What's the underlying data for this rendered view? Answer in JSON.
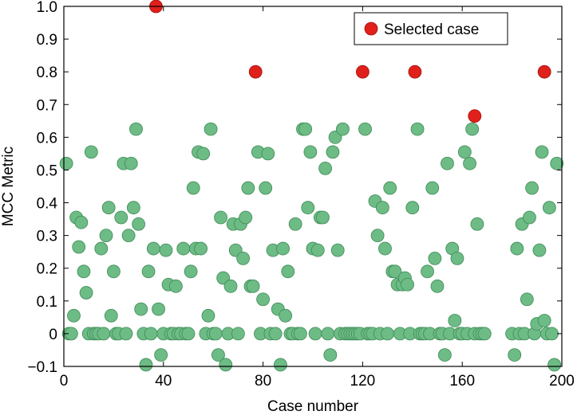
{
  "chart_data": {
    "type": "scatter",
    "title": "",
    "xlabel": "Case number",
    "ylabel": "MCC Metric",
    "xlim": [
      0,
      200
    ],
    "ylim": [
      -0.1,
      1.0
    ],
    "x_ticks": [
      "0",
      "40",
      "80",
      "120",
      "160",
      "200"
    ],
    "y_ticks": [
      "−0.1",
      "0",
      "0.1",
      "0.2",
      "0.3",
      "0.4",
      "0.5",
      "0.6",
      "0.7",
      "0.8",
      "0.9",
      "1.0"
    ],
    "grid": false,
    "legend_position": "top-right",
    "colors": {
      "regular": "#6dbb85",
      "regular_edge": "#3f8a57",
      "selected": "#e0201b",
      "selected_edge": "#a11410"
    },
    "series": [
      {
        "name": "",
        "points": [
          [
            1,
            0.52
          ],
          [
            2,
            0
          ],
          [
            3,
            0
          ],
          [
            4,
            0.055
          ],
          [
            5,
            0.355
          ],
          [
            6,
            0.265
          ],
          [
            7,
            0.34
          ],
          [
            8,
            0.19
          ],
          [
            9,
            0.125
          ],
          [
            10,
            0
          ],
          [
            11,
            0.555
          ],
          [
            12,
            0
          ],
          [
            13,
            0
          ],
          [
            14,
            0
          ],
          [
            15,
            0.26
          ],
          [
            16,
            0
          ],
          [
            17,
            0.3
          ],
          [
            18,
            0.385
          ],
          [
            19,
            0.055
          ],
          [
            20,
            0.19
          ],
          [
            21,
            0
          ],
          [
            22,
            0
          ],
          [
            23,
            0.355
          ],
          [
            24,
            0.52
          ],
          [
            25,
            0
          ],
          [
            26,
            0.3
          ],
          [
            27,
            0.52
          ],
          [
            28,
            0.385
          ],
          [
            29,
            0.625
          ],
          [
            30,
            0.335
          ],
          [
            31,
            0.075
          ],
          [
            32,
            0
          ],
          [
            33,
            -0.095
          ],
          [
            34,
            0.19
          ],
          [
            35,
            0
          ],
          [
            36,
            0.26
          ],
          [
            38,
            0.075
          ],
          [
            39,
            -0.065
          ],
          [
            40,
            0
          ],
          [
            41,
            0.255
          ],
          [
            42,
            0.15
          ],
          [
            43,
            0
          ],
          [
            44,
            0
          ],
          [
            45,
            0.145
          ],
          [
            46,
            0
          ],
          [
            47,
            0
          ],
          [
            48,
            0.26
          ],
          [
            49,
            0
          ],
          [
            50,
            0
          ],
          [
            51,
            0.19
          ],
          [
            52,
            0.445
          ],
          [
            53,
            0.26
          ],
          [
            54,
            0.555
          ],
          [
            55,
            0.26
          ],
          [
            56,
            0.55
          ],
          [
            57,
            0
          ],
          [
            58,
            0.055
          ],
          [
            59,
            0.625
          ],
          [
            60,
            0
          ],
          [
            61,
            0
          ],
          [
            62,
            -0.065
          ],
          [
            63,
            0.355
          ],
          [
            64,
            0.17
          ],
          [
            65,
            -0.095
          ],
          [
            66,
            0
          ],
          [
            67,
            0.145
          ],
          [
            68,
            0.335
          ],
          [
            69,
            0.255
          ],
          [
            70,
            0
          ],
          [
            71,
            0.335
          ],
          [
            72,
            0.23
          ],
          [
            73,
            0.355
          ],
          [
            74,
            0.445
          ],
          [
            75,
            0.145
          ],
          [
            76,
            0.145
          ],
          [
            78,
            0.555
          ],
          [
            79,
            0
          ],
          [
            80,
            0.105
          ],
          [
            81,
            0.445
          ],
          [
            82,
            0.55
          ],
          [
            83,
            0
          ],
          [
            84,
            0.255
          ],
          [
            85,
            0
          ],
          [
            86,
            0.075
          ],
          [
            87,
            -0.095
          ],
          [
            88,
            0.26
          ],
          [
            89,
            0.055
          ],
          [
            90,
            0.19
          ],
          [
            91,
            0
          ],
          [
            92,
            0
          ],
          [
            93,
            0.335
          ],
          [
            94,
            0
          ],
          [
            95,
            0
          ],
          [
            96,
            0.625
          ],
          [
            97,
            0.625
          ],
          [
            98,
            0.385
          ],
          [
            99,
            0.555
          ],
          [
            100,
            0.26
          ],
          [
            101,
            0
          ],
          [
            102,
            0.255
          ],
          [
            103,
            0.355
          ],
          [
            104,
            0.355
          ],
          [
            105,
            0.505
          ],
          [
            106,
            0
          ],
          [
            107,
            -0.065
          ],
          [
            108,
            0.555
          ],
          [
            109,
            0.6
          ],
          [
            110,
            0.255
          ],
          [
            111,
            0
          ],
          [
            112,
            0.625
          ],
          [
            113,
            0
          ],
          [
            114,
            0
          ],
          [
            115,
            0
          ],
          [
            116,
            0
          ],
          [
            117,
            0
          ],
          [
            118,
            0
          ],
          [
            119,
            0
          ],
          [
            121,
            0.625
          ],
          [
            122,
            0
          ],
          [
            123,
            0
          ],
          [
            124,
            0
          ],
          [
            125,
            0.405
          ],
          [
            126,
            0.3
          ],
          [
            127,
            0
          ],
          [
            128,
            0.385
          ],
          [
            129,
            0.26
          ],
          [
            130,
            0
          ],
          [
            131,
            0.445
          ],
          [
            132,
            0.19
          ],
          [
            133,
            0.19
          ],
          [
            134,
            0.15
          ],
          [
            135,
            0
          ],
          [
            136,
            0.15
          ],
          [
            137,
            0.17
          ],
          [
            138,
            0.15
          ],
          [
            139,
            0
          ],
          [
            140,
            0.385
          ],
          [
            142,
            0.625
          ],
          [
            143,
            0
          ],
          [
            144,
            0
          ],
          [
            145,
            0
          ],
          [
            146,
            0.19
          ],
          [
            147,
            0
          ],
          [
            148,
            0.445
          ],
          [
            149,
            0.23
          ],
          [
            150,
            0.145
          ],
          [
            151,
            0
          ],
          [
            152,
            0
          ],
          [
            153,
            -0.065
          ],
          [
            154,
            0.52
          ],
          [
            155,
            0
          ],
          [
            156,
            0.26
          ],
          [
            157,
            0.04
          ],
          [
            158,
            0.23
          ],
          [
            159,
            0
          ],
          [
            160,
            0
          ],
          [
            161,
            0.555
          ],
          [
            162,
            0
          ],
          [
            163,
            0.52
          ],
          [
            164,
            0.625
          ],
          [
            165,
            0
          ],
          [
            166,
            0.335
          ],
          [
            167,
            0
          ],
          [
            168,
            0
          ],
          [
            169,
            0
          ],
          [
            180,
            0
          ],
          [
            181,
            -0.065
          ],
          [
            182,
            0.26
          ],
          [
            183,
            0
          ],
          [
            184,
            0.335
          ],
          [
            185,
            0
          ],
          [
            186,
            0.105
          ],
          [
            187,
            0.355
          ],
          [
            188,
            0.445
          ],
          [
            189,
            0
          ],
          [
            190,
            0.03
          ],
          [
            191,
            0.255
          ],
          [
            192,
            0.555
          ],
          [
            193,
            0.04
          ],
          [
            194,
            0
          ],
          [
            195,
            0.385
          ],
          [
            196,
            0
          ],
          [
            197,
            -0.095
          ],
          [
            198,
            0.52
          ]
        ]
      },
      {
        "name": "Selected case",
        "points": [
          [
            37,
            1.0
          ],
          [
            77,
            0.8
          ],
          [
            120,
            0.8
          ],
          [
            141,
            0.8
          ],
          [
            165,
            0.665
          ],
          [
            193,
            0.8
          ]
        ]
      }
    ]
  }
}
